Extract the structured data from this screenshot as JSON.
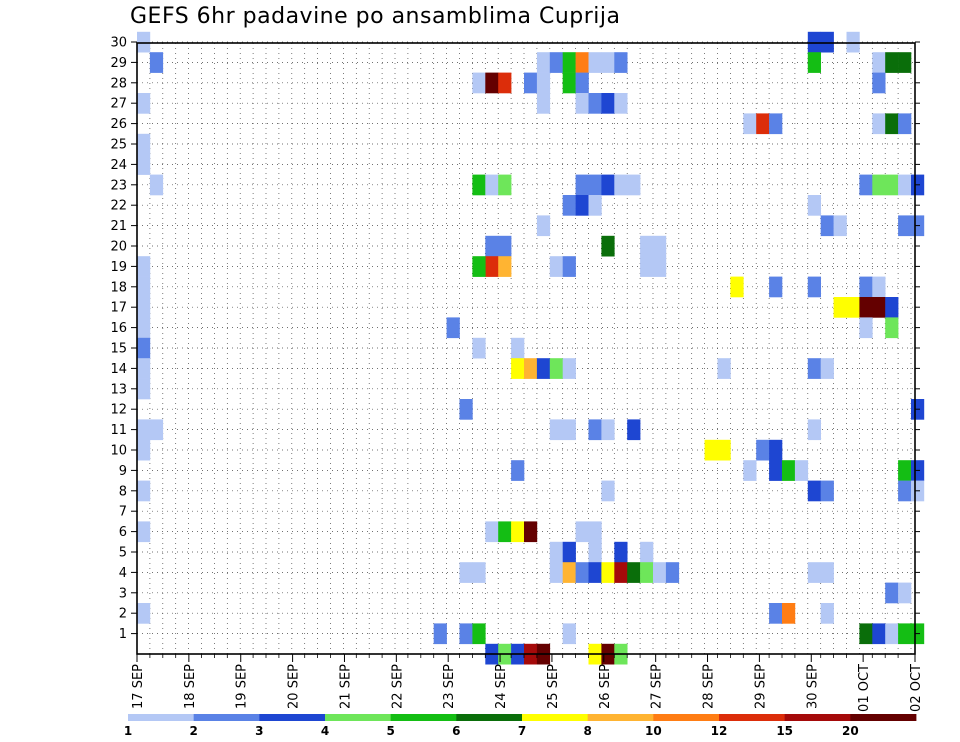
{
  "chart_data": {
    "type": "heatmap",
    "title": "GEFS 6hr padavine po ansamblima Cuprija",
    "xlabel": "",
    "ylabel": "",
    "x_tick_labels": [
      "17 SEP",
      "18 SEP",
      "19 SEP",
      "20 SEP",
      "21 SEP",
      "22 SEP",
      "23 SEP",
      "24 SEP",
      "25 SEP",
      "26 SEP",
      "27 SEP",
      "28 SEP",
      "29 SEP",
      "30 SEP",
      "01 OCT",
      "02 OCT"
    ],
    "time_steps_6h": [
      0,
      61
    ],
    "members": [
      0,
      30
    ],
    "y_tick_labels": [
      "1",
      "2",
      "3",
      "4",
      "5",
      "6",
      "7",
      "8",
      "9",
      "10",
      "11",
      "12",
      "13",
      "14",
      "15",
      "16",
      "17",
      "18",
      "19",
      "20",
      "21",
      "22",
      "23",
      "24",
      "25",
      "26",
      "27",
      "28",
      "29",
      "30"
    ],
    "grid": "dotted",
    "legend": {
      "position": "bottom",
      "labels": [
        "1",
        "2",
        "3",
        "4",
        "5",
        "6",
        "7",
        "8",
        "10",
        "12",
        "15",
        "20"
      ],
      "colors": [
        "#b4c8f5",
        "#5a82e6",
        "#1e46d2",
        "#6ee65a",
        "#14be14",
        "#0a6e0a",
        "#ffff00",
        "#ffb432",
        "#ff7d14",
        "#dc2d0a",
        "#a50a0a",
        "#640000"
      ]
    },
    "cells": [
      [
        0,
        30,
        0
      ],
      [
        1,
        29,
        1
      ],
      [
        0,
        27,
        0
      ],
      [
        0,
        25,
        0
      ],
      [
        0,
        24,
        0
      ],
      [
        1,
        23,
        0
      ],
      [
        0,
        19,
        0
      ],
      [
        0,
        18,
        0
      ],
      [
        0,
        17,
        0
      ],
      [
        0,
        16,
        0
      ],
      [
        0,
        15,
        1
      ],
      [
        0,
        14,
        0
      ],
      [
        0,
        13,
        0
      ],
      [
        0,
        11,
        0
      ],
      [
        1,
        11,
        0
      ],
      [
        0,
        10,
        0
      ],
      [
        0,
        8,
        0
      ],
      [
        0,
        6,
        0
      ],
      [
        0,
        2,
        0
      ],
      [
        26,
        28,
        0
      ],
      [
        27,
        28,
        11
      ],
      [
        28,
        28,
        9
      ],
      [
        30,
        28,
        1
      ],
      [
        31,
        28,
        0
      ],
      [
        31,
        27,
        0
      ],
      [
        31,
        29,
        0
      ],
      [
        32,
        29,
        1
      ],
      [
        33,
        29,
        4
      ],
      [
        34,
        29,
        8
      ],
      [
        35,
        29,
        0
      ],
      [
        36,
        29,
        0
      ],
      [
        37,
        29,
        1
      ],
      [
        33,
        28,
        4
      ],
      [
        34,
        28,
        1
      ],
      [
        34,
        27,
        0
      ],
      [
        35,
        27,
        1
      ],
      [
        36,
        27,
        2
      ],
      [
        37,
        27,
        0
      ],
      [
        26,
        23,
        4
      ],
      [
        27,
        23,
        0
      ],
      [
        28,
        23,
        3
      ],
      [
        34,
        23,
        1
      ],
      [
        35,
        23,
        1
      ],
      [
        36,
        23,
        2
      ],
      [
        37,
        23,
        0
      ],
      [
        38,
        23,
        0
      ],
      [
        33,
        22,
        1
      ],
      [
        34,
        22,
        2
      ],
      [
        35,
        22,
        0
      ],
      [
        31,
        21,
        0
      ],
      [
        36,
        20,
        5
      ],
      [
        39,
        20,
        0
      ],
      [
        40,
        20,
        0
      ],
      [
        27,
        20,
        1
      ],
      [
        28,
        20,
        1
      ],
      [
        27,
        19,
        9
      ],
      [
        28,
        19,
        7
      ],
      [
        26,
        19,
        4
      ],
      [
        32,
        19,
        0
      ],
      [
        33,
        19,
        1
      ],
      [
        39,
        19,
        0
      ],
      [
        40,
        19,
        0
      ],
      [
        24,
        16,
        1
      ],
      [
        26,
        15,
        0
      ],
      [
        29,
        15,
        0
      ],
      [
        29,
        14,
        6
      ],
      [
        30,
        14,
        7
      ],
      [
        31,
        14,
        2
      ],
      [
        32,
        14,
        3
      ],
      [
        33,
        14,
        0
      ],
      [
        25,
        12,
        1
      ],
      [
        32,
        11,
        0
      ],
      [
        33,
        11,
        0
      ],
      [
        35,
        11,
        1
      ],
      [
        36,
        11,
        0
      ],
      [
        38,
        11,
        2
      ],
      [
        29,
        9,
        1
      ],
      [
        36,
        8,
        0
      ],
      [
        27,
        6,
        0
      ],
      [
        28,
        6,
        4
      ],
      [
        29,
        6,
        6
      ],
      [
        30,
        6,
        11
      ],
      [
        34,
        6,
        0
      ],
      [
        35,
        6,
        0
      ],
      [
        32,
        5,
        0
      ],
      [
        33,
        5,
        2
      ],
      [
        35,
        5,
        0
      ],
      [
        37,
        5,
        2
      ],
      [
        39,
        5,
        0
      ],
      [
        32,
        4,
        0
      ],
      [
        33,
        4,
        7
      ],
      [
        34,
        4,
        1
      ],
      [
        35,
        4,
        2
      ],
      [
        36,
        4,
        6
      ],
      [
        37,
        4,
        10
      ],
      [
        38,
        4,
        5
      ],
      [
        39,
        4,
        3
      ],
      [
        40,
        4,
        0
      ],
      [
        41,
        4,
        1
      ],
      [
        25,
        4,
        0
      ],
      [
        26,
        4,
        0
      ],
      [
        23,
        1,
        1
      ],
      [
        25,
        1,
        1
      ],
      [
        26,
        1,
        4
      ],
      [
        33,
        1,
        0
      ],
      [
        27,
        0,
        2
      ],
      [
        28,
        0,
        3
      ],
      [
        29,
        0,
        2
      ],
      [
        30,
        0,
        10
      ],
      [
        31,
        0,
        11
      ],
      [
        35,
        0,
        6
      ],
      [
        36,
        0,
        11
      ],
      [
        37,
        0,
        3
      ],
      [
        47,
        26,
        0
      ],
      [
        48,
        26,
        9
      ],
      [
        49,
        26,
        1
      ],
      [
        52,
        30,
        2
      ],
      [
        53,
        30,
        2
      ],
      [
        55,
        30,
        0
      ],
      [
        52,
        29,
        4
      ],
      [
        57,
        29,
        0
      ],
      [
        58,
        29,
        5
      ],
      [
        59,
        29,
        5
      ],
      [
        57,
        28,
        1
      ],
      [
        57,
        26,
        0
      ],
      [
        58,
        26,
        5
      ],
      [
        59,
        26,
        1
      ],
      [
        56,
        23,
        1
      ],
      [
        57,
        23,
        3
      ],
      [
        58,
        23,
        3
      ],
      [
        59,
        23,
        0
      ],
      [
        60,
        23,
        2
      ],
      [
        52,
        22,
        0
      ],
      [
        53,
        21,
        1
      ],
      [
        54,
        21,
        0
      ],
      [
        59,
        21,
        1
      ],
      [
        60,
        21,
        1
      ],
      [
        46,
        18,
        6
      ],
      [
        49,
        18,
        1
      ],
      [
        52,
        18,
        1
      ],
      [
        56,
        18,
        1
      ],
      [
        57,
        18,
        0
      ],
      [
        54,
        17,
        6
      ],
      [
        55,
        17,
        6
      ],
      [
        56,
        17,
        11
      ],
      [
        57,
        17,
        11
      ],
      [
        58,
        17,
        2
      ],
      [
        56,
        16,
        0
      ],
      [
        58,
        16,
        3
      ],
      [
        45,
        14,
        0
      ],
      [
        52,
        14,
        1
      ],
      [
        53,
        14,
        0
      ],
      [
        60,
        12,
        2
      ],
      [
        52,
        11,
        0
      ],
      [
        44,
        10,
        6
      ],
      [
        45,
        10,
        6
      ],
      [
        48,
        10,
        1
      ],
      [
        49,
        10,
        2
      ],
      [
        47,
        9,
        0
      ],
      [
        49,
        9,
        2
      ],
      [
        50,
        9,
        4
      ],
      [
        51,
        9,
        0
      ],
      [
        59,
        9,
        4
      ],
      [
        60,
        9,
        2
      ],
      [
        52,
        8,
        2
      ],
      [
        53,
        8,
        1
      ],
      [
        59,
        8,
        1
      ],
      [
        60,
        8,
        0
      ],
      [
        52,
        4,
        0
      ],
      [
        53,
        4,
        0
      ],
      [
        58,
        3,
        1
      ],
      [
        59,
        3,
        0
      ],
      [
        49,
        2,
        1
      ],
      [
        50,
        2,
        8
      ],
      [
        53,
        2,
        0
      ],
      [
        56,
        1,
        5
      ],
      [
        57,
        1,
        2
      ],
      [
        58,
        1,
        0
      ],
      [
        59,
        1,
        4
      ],
      [
        60,
        1,
        4
      ]
    ]
  }
}
